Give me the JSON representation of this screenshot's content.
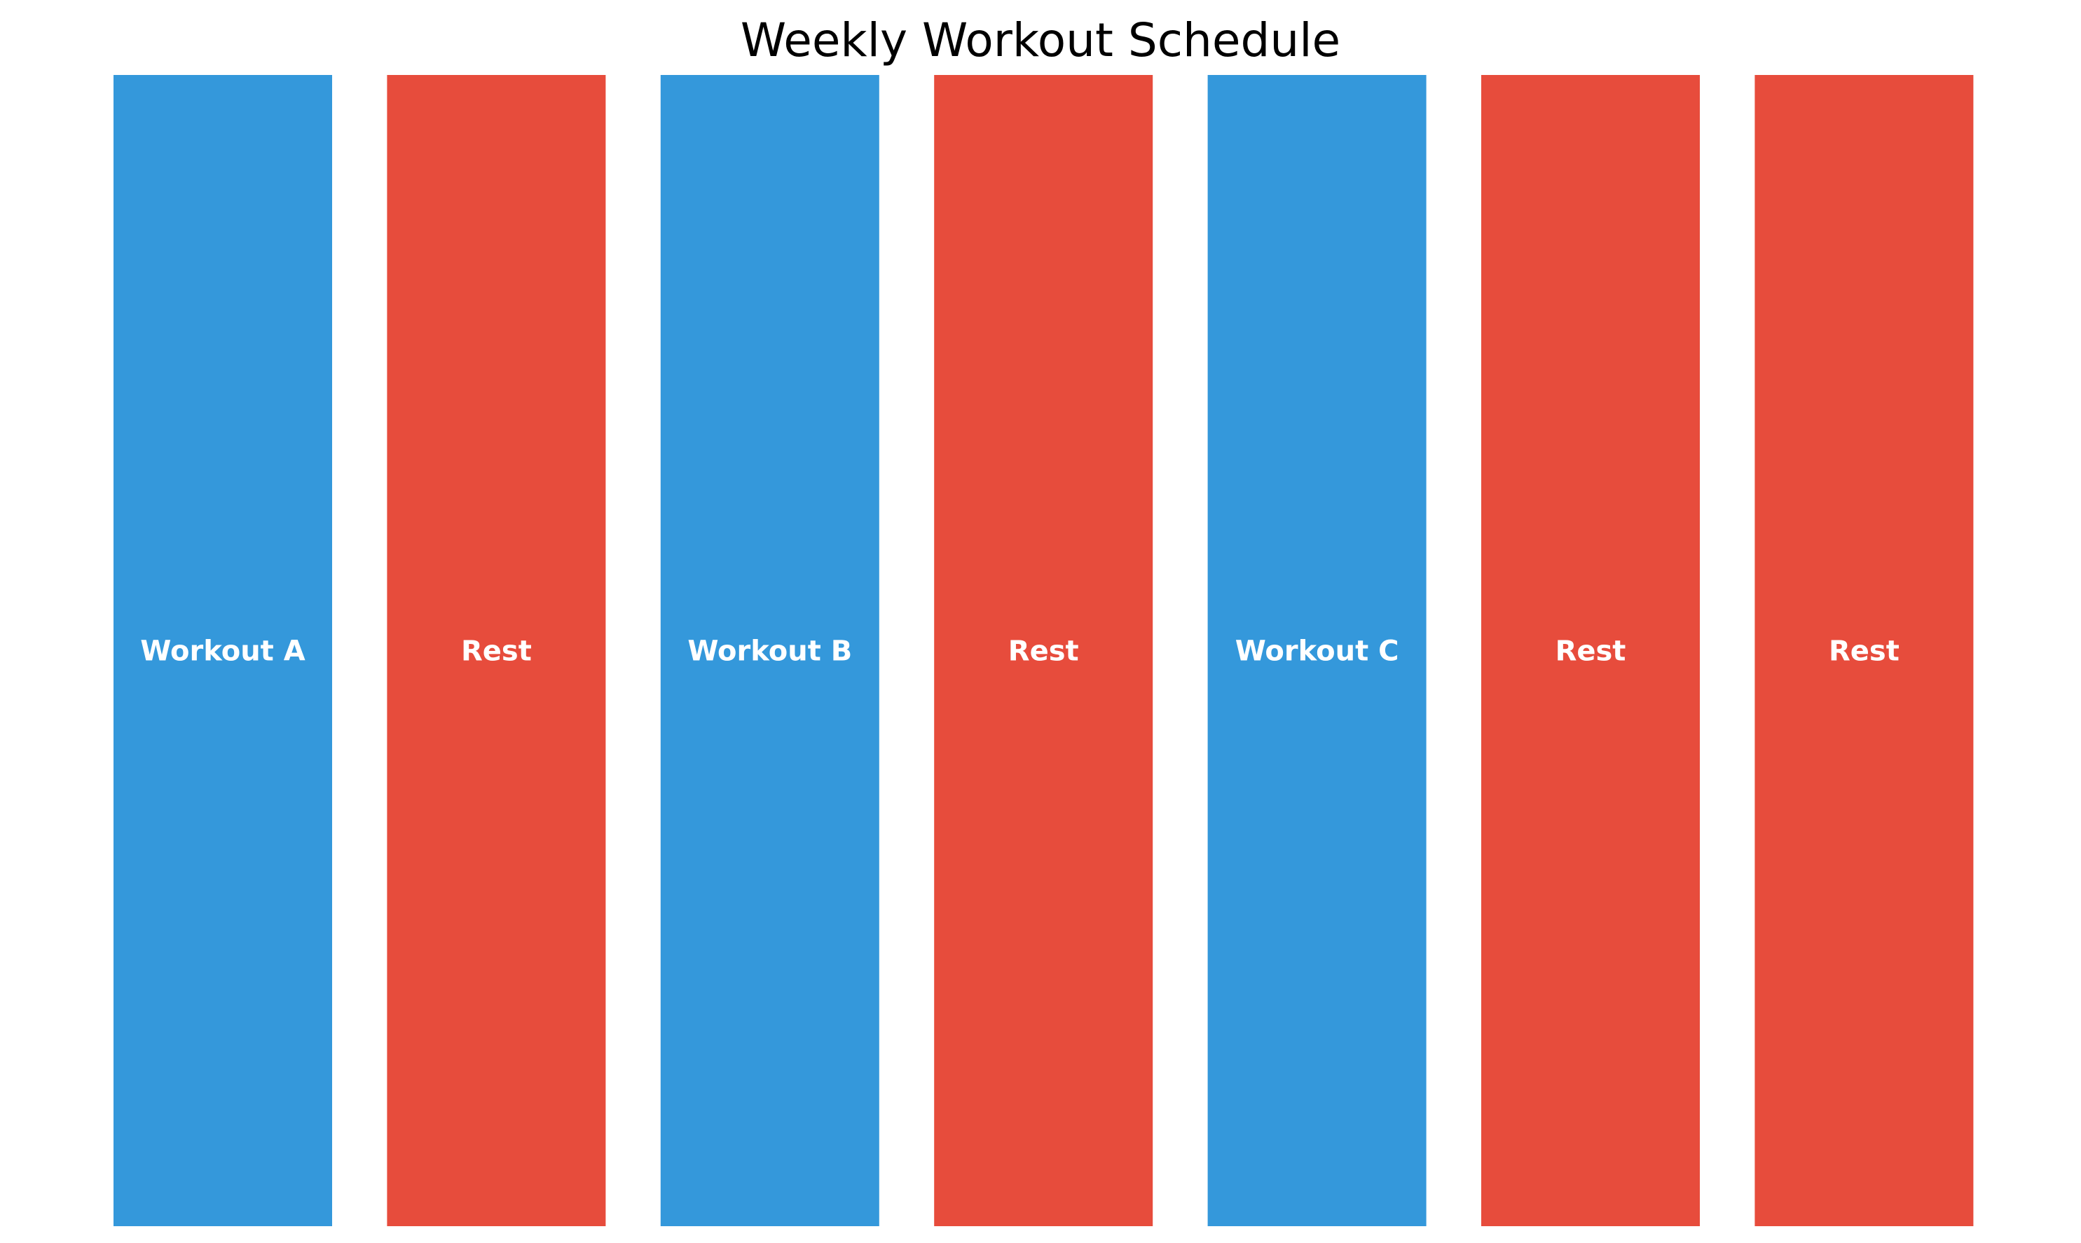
{
  "chart_data": {
    "type": "bar",
    "title": "Weekly Workout Schedule",
    "xlabel": "",
    "ylabel": "",
    "ylim": [
      0,
      1
    ],
    "grid": false,
    "axes_visible": false,
    "bars": [
      {
        "label": "Workout A",
        "value": 1,
        "kind": "workout"
      },
      {
        "label": "Rest",
        "value": 1,
        "kind": "rest"
      },
      {
        "label": "Workout B",
        "value": 1,
        "kind": "workout"
      },
      {
        "label": "Rest",
        "value": 1,
        "kind": "rest"
      },
      {
        "label": "Workout C",
        "value": 1,
        "kind": "workout"
      },
      {
        "label": "Rest",
        "value": 1,
        "kind": "rest"
      },
      {
        "label": "Rest",
        "value": 1,
        "kind": "rest"
      }
    ],
    "colors": {
      "workout": "#3498db",
      "rest": "#e74c3c",
      "label_text": "#ffffff"
    }
  }
}
